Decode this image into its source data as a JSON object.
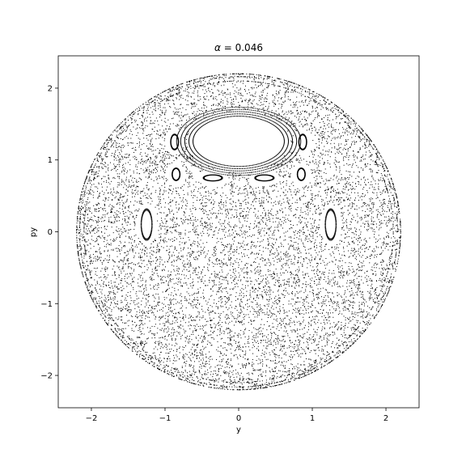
{
  "chart_data": {
    "type": "scatter",
    "title_prefix": "α = ",
    "title_value": "0.046",
    "xlabel": "y",
    "ylabel": "py",
    "xlim": [
      -2.45,
      2.45
    ],
    "ylim": [
      -2.45,
      2.45
    ],
    "xticks": [
      -2,
      -1,
      0,
      1,
      2
    ],
    "yticks": [
      -2,
      -1,
      0,
      1,
      2
    ],
    "grid": false,
    "marker_color": "#000000",
    "series": [
      {
        "description": "Poincaré section points (chaotic sea bounded by outer energy circle with stable islands)",
        "outer_radius": 2.2,
        "islands": [
          {
            "center": [
              0,
              1.26
            ],
            "rx": 0.62,
            "ry": 0.35,
            "kind": "large_top_island"
          },
          {
            "center": [
              -1.25,
              0.1
            ],
            "rx": 0.07,
            "ry": 0.2,
            "kind": "left_island"
          },
          {
            "center": [
              1.25,
              0.1
            ],
            "rx": 0.07,
            "ry": 0.2,
            "kind": "right_island"
          },
          {
            "center": [
              -0.87,
              1.25
            ],
            "rx": 0.05,
            "ry": 0.1,
            "kind": "small_island"
          },
          {
            "center": [
              0.87,
              1.25
            ],
            "rx": 0.05,
            "ry": 0.1,
            "kind": "small_island"
          },
          {
            "center": [
              -0.85,
              0.8
            ],
            "rx": 0.05,
            "ry": 0.08,
            "kind": "small_island"
          },
          {
            "center": [
              0.85,
              0.8
            ],
            "rx": 0.05,
            "ry": 0.08,
            "kind": "small_island"
          },
          {
            "center": [
              -0.35,
              0.75
            ],
            "rx": 0.12,
            "ry": 0.04,
            "kind": "small_island"
          },
          {
            "center": [
              0.35,
              0.75
            ],
            "rx": 0.12,
            "ry": 0.04,
            "kind": "small_island"
          }
        ]
      }
    ]
  }
}
